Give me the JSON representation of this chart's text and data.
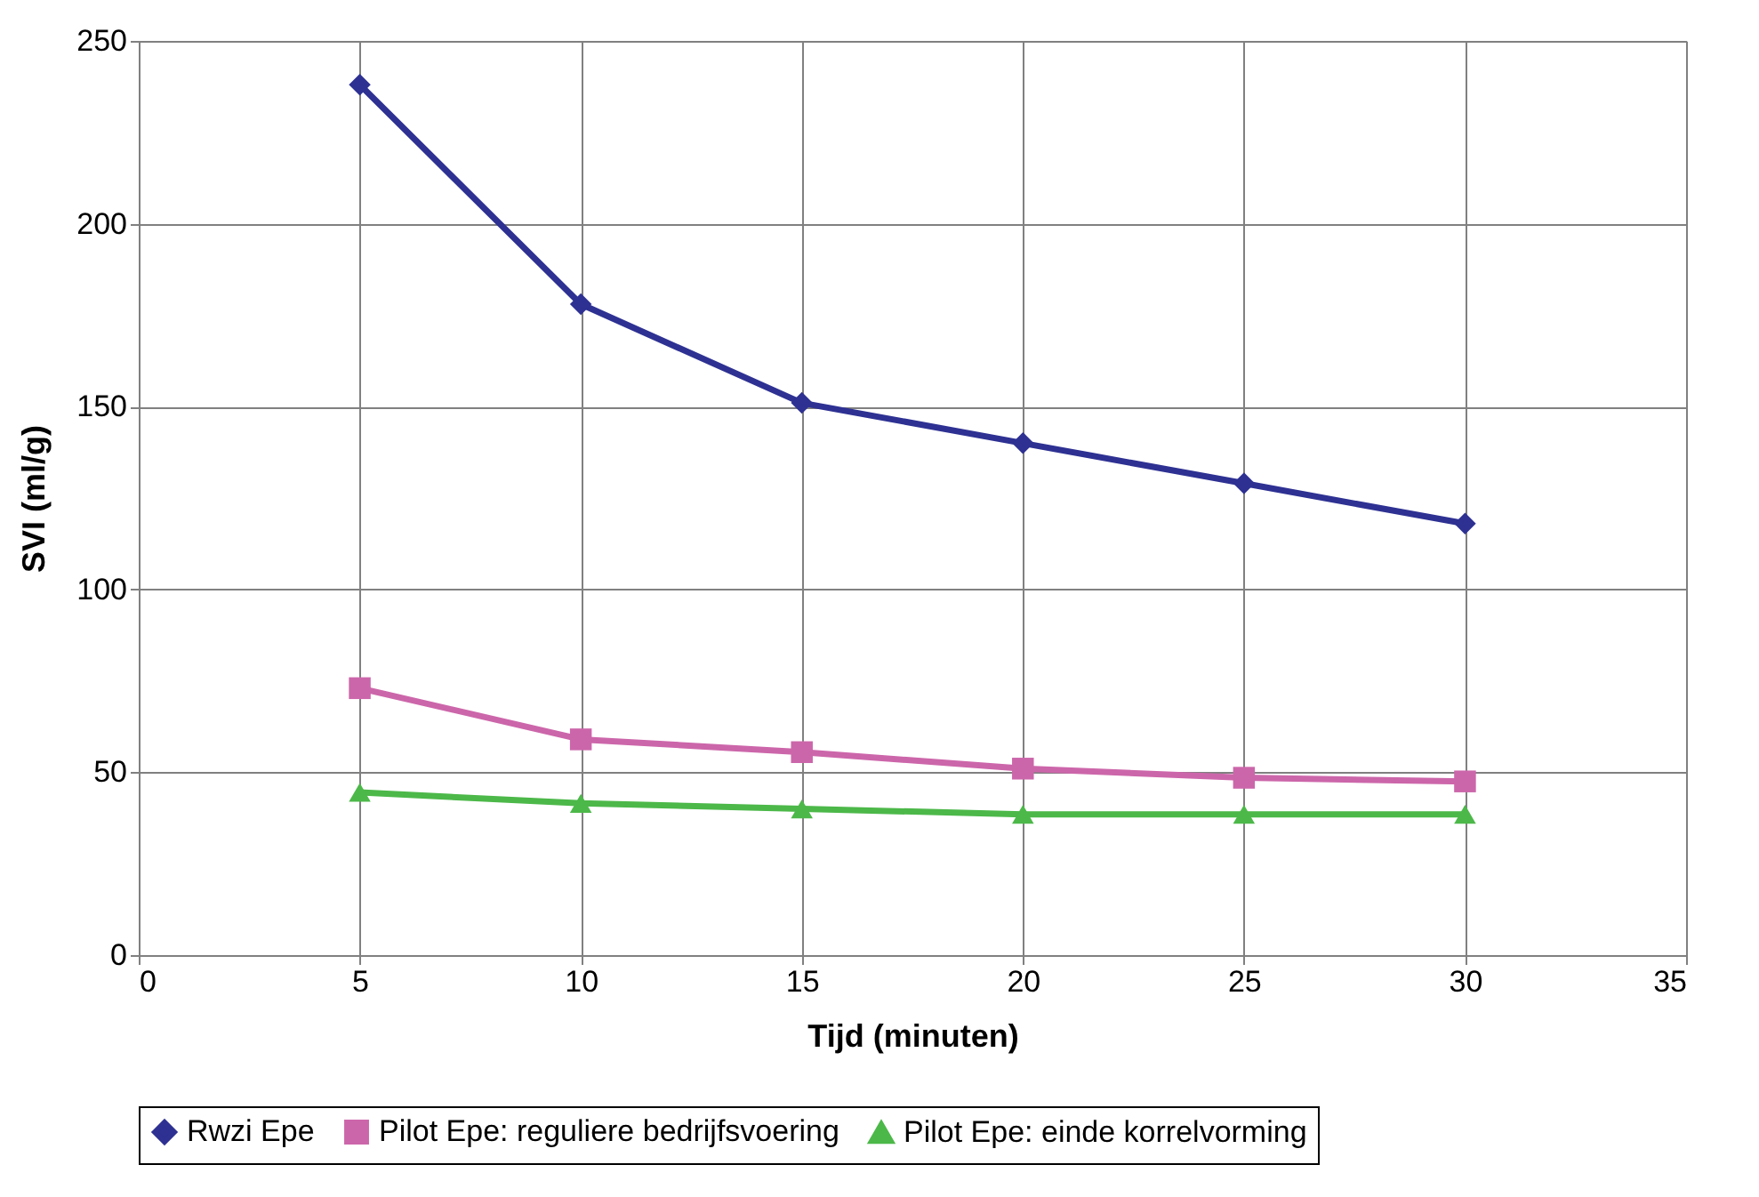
{
  "chart_data": {
    "type": "line",
    "xlabel": "Tijd (minuten)",
    "ylabel": "SVI (ml/g)",
    "x": [
      5,
      10,
      15,
      20,
      25,
      30
    ],
    "series": [
      {
        "name": "Rwzi Epe",
        "color": "#2e3192",
        "marker": "diamond",
        "values": [
          238,
          178,
          151,
          140,
          129,
          118
        ]
      },
      {
        "name": "Pilot Epe: reguliere bedrijfsvoering",
        "color": "#cc66aa",
        "marker": "square",
        "values": [
          73,
          59,
          55.5,
          51,
          48.5,
          47.5
        ]
      },
      {
        "name": "Pilot Epe: einde korrelvorming",
        "color": "#4cb849",
        "marker": "triangle",
        "values": [
          44.5,
          41.5,
          40,
          38.5,
          38.5,
          38.5
        ]
      }
    ],
    "xlim": [
      0,
      35
    ],
    "xticks": [
      0,
      5,
      10,
      15,
      20,
      25,
      30,
      35
    ],
    "ylim": [
      0,
      250
    ],
    "yticks": [
      0,
      50,
      100,
      150,
      200,
      250
    ],
    "grid": true,
    "legend": "bottom",
    "line_style": "solid"
  }
}
